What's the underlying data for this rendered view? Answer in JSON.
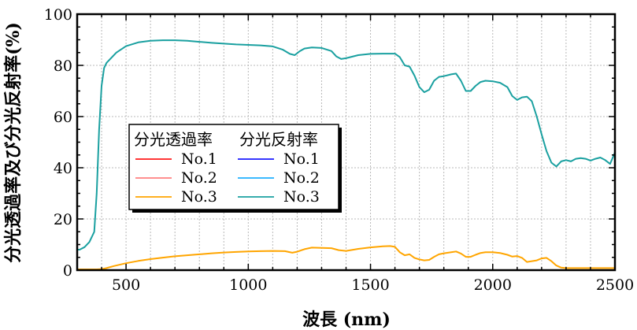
{
  "chart_data": {
    "type": "line",
    "xlabel": "波長 (nm)",
    "ylabel": "分光透過率及び分光反射率(%)",
    "xlim": [
      300,
      2500
    ],
    "ylim": [
      0,
      100
    ],
    "xticks": [
      500,
      1000,
      1500,
      2000,
      2500
    ],
    "yticks": [
      0,
      20,
      40,
      60,
      80,
      100
    ],
    "grid": true,
    "legend": {
      "placement": "center-left",
      "group_headers": [
        "分光透過率",
        "分光反射率"
      ],
      "entries": [
        {
          "group": "分光透過率",
          "label": "No.1",
          "color": "#ff1a1a"
        },
        {
          "group": "分光透過率",
          "label": "No.2",
          "color": "#ff8080"
        },
        {
          "group": "分光透過率",
          "label": "No.3",
          "color": "#ffa500"
        },
        {
          "group": "分光反射率",
          "label": "No.1",
          "color": "#1a1aff"
        },
        {
          "group": "分光反射率",
          "label": "No.2",
          "color": "#20b0ff"
        },
        {
          "group": "分光反射率",
          "label": "No.3",
          "color": "#1aa0a0"
        }
      ]
    },
    "series": [
      {
        "name": "分光透過率 No.3",
        "color": "#ffa500",
        "x": [
          300,
          320,
          340,
          360,
          380,
          400,
          420,
          450,
          500,
          550,
          600,
          650,
          700,
          750,
          800,
          850,
          900,
          950,
          1000,
          1050,
          1100,
          1150,
          1180,
          1200,
          1230,
          1260,
          1300,
          1340,
          1370,
          1400,
          1450,
          1500,
          1550,
          1580,
          1600,
          1620,
          1640,
          1660,
          1680,
          1700,
          1720,
          1740,
          1760,
          1780,
          1800,
          1830,
          1850,
          1870,
          1890,
          1910,
          1930,
          1950,
          1970,
          2000,
          2030,
          2060,
          2080,
          2100,
          2120,
          2140,
          2160,
          2180,
          2200,
          2220,
          2240,
          2260,
          2280,
          2300,
          2350,
          2400,
          2450,
          2500
        ],
        "y": [
          0.3,
          0.3,
          0.3,
          0.3,
          0.3,
          0.4,
          0.8,
          1.6,
          2.7,
          3.6,
          4.3,
          4.9,
          5.4,
          5.8,
          6.2,
          6.6,
          6.9,
          7.1,
          7.3,
          7.4,
          7.5,
          7.4,
          6.8,
          7.2,
          8.2,
          8.8,
          8.7,
          8.6,
          7.8,
          7.5,
          8.3,
          8.9,
          9.3,
          9.4,
          9.1,
          7.0,
          5.8,
          6.2,
          4.8,
          4.2,
          3.8,
          4.0,
          5.2,
          6.2,
          6.6,
          7.0,
          7.3,
          6.5,
          5.2,
          5.2,
          6.0,
          6.7,
          7.0,
          7.0,
          6.7,
          6.0,
          5.3,
          5.5,
          4.8,
          3.2,
          3.5,
          3.8,
          4.6,
          4.8,
          3.5,
          1.8,
          1.0,
          0.8,
          0.8,
          0.8,
          0.8,
          0.8
        ]
      },
      {
        "name": "分光反射率 No.3",
        "color": "#1aa0a0",
        "x": [
          300,
          310,
          330,
          350,
          370,
          380,
          390,
          400,
          410,
          420,
          440,
          460,
          500,
          550,
          600,
          650,
          700,
          750,
          800,
          850,
          900,
          950,
          1000,
          1050,
          1100,
          1140,
          1170,
          1190,
          1210,
          1230,
          1260,
          1300,
          1340,
          1360,
          1380,
          1400,
          1450,
          1500,
          1550,
          1600,
          1620,
          1640,
          1660,
          1680,
          1700,
          1720,
          1740,
          1760,
          1780,
          1800,
          1830,
          1850,
          1870,
          1890,
          1910,
          1930,
          1950,
          1970,
          2000,
          2030,
          2060,
          2080,
          2100,
          2120,
          2140,
          2160,
          2180,
          2200,
          2220,
          2240,
          2260,
          2280,
          2300,
          2320,
          2340,
          2360,
          2380,
          2400,
          2420,
          2440,
          2460,
          2480,
          2500
        ],
        "y": [
          8,
          8,
          9,
          11,
          15,
          30,
          55,
          72,
          79,
          81,
          83,
          85,
          87.5,
          89,
          89.6,
          89.8,
          89.8,
          89.6,
          89.2,
          88.8,
          88.5,
          88.2,
          88.0,
          87.8,
          87.4,
          86.2,
          84.5,
          84.0,
          85.5,
          86.6,
          87.0,
          86.8,
          85.6,
          83.5,
          82.5,
          82.8,
          84.0,
          84.5,
          84.6,
          84.6,
          83.2,
          80.0,
          79.5,
          76.0,
          71.5,
          69.5,
          70.5,
          74.0,
          75.5,
          75.8,
          76.5,
          76.8,
          74.0,
          70.0,
          70.0,
          72.0,
          73.5,
          74.0,
          73.8,
          73.2,
          71.5,
          68.0,
          66.5,
          67.5,
          67.8,
          66.0,
          60.0,
          53.0,
          46.5,
          42.0,
          40.5,
          42.5,
          43.0,
          42.5,
          43.5,
          43.8,
          43.5,
          42.8,
          43.5,
          44.0,
          43.0,
          41.5,
          46.0
        ]
      }
    ]
  }
}
